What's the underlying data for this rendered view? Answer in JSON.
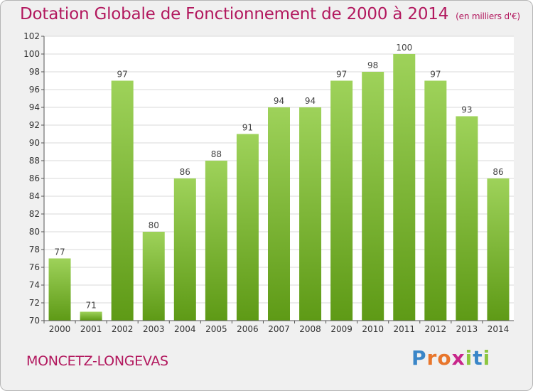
{
  "title": "Dotation Globale de Fonctionnement de 2000 à 2014",
  "title_unit": "(en milliers d'€)",
  "commune": "MONCETZ-LONGEVAS",
  "logo": {
    "text": "Proxiti",
    "letters": [
      {
        "ch": "P",
        "color": "#3a86c8"
      },
      {
        "ch": "r",
        "color": "#e8762c"
      },
      {
        "ch": "o",
        "color": "#e8762c"
      },
      {
        "ch": "x",
        "color": "#c8268a"
      },
      {
        "ch": "i",
        "color": "#8cc63f"
      },
      {
        "ch": "t",
        "color": "#3a86c8"
      },
      {
        "ch": "i",
        "color": "#8cc63f"
      }
    ]
  },
  "colors": {
    "bar_top": "#9ed25a",
    "bar_bottom": "#5e9a16",
    "accent": "#b2185e",
    "grid": "#d8d8d8"
  },
  "chart_data": {
    "type": "bar",
    "categories": [
      "2000",
      "2001",
      "2002",
      "2003",
      "2004",
      "2005",
      "2006",
      "2007",
      "2008",
      "2009",
      "2010",
      "2011",
      "2012",
      "2013",
      "2014"
    ],
    "values": [
      77,
      71,
      97,
      80,
      86,
      88,
      91,
      94,
      94,
      97,
      98,
      100,
      97,
      93,
      86
    ],
    "ylim": [
      70,
      102
    ],
    "yticks": [
      70,
      72,
      74,
      76,
      78,
      80,
      82,
      84,
      86,
      88,
      90,
      92,
      94,
      96,
      98,
      100,
      102
    ],
    "grid": true,
    "legend": "none"
  }
}
